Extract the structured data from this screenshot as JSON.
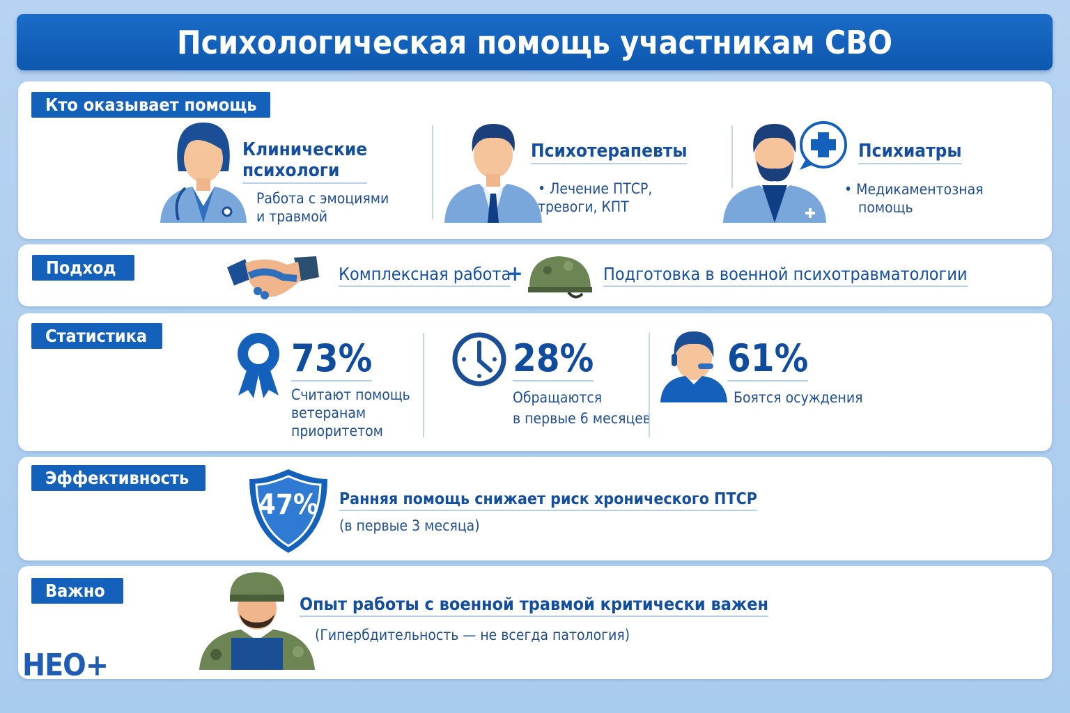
{
  "title": "Психологическая помощь участникам СВО",
  "sections": {
    "who": {
      "label": "Кто оказывает помощь",
      "items": [
        {
          "title_l1": "Клинические",
          "title_l2": "психологи",
          "text_l1": "Работа с эмоциями",
          "text_l2": "и травмой",
          "icon": "female-psychologist-icon"
        },
        {
          "title": "Психотерапевты",
          "text_l1": "• Лечение ПТСР,",
          "text_l2": "тревоги, КПТ",
          "icon": "male-psychotherapist-icon"
        },
        {
          "title": "Психиатры",
          "text_l1": "• Медикаментозная",
          "text_l2": "помощь",
          "icon": "psychiatrist-icon"
        }
      ]
    },
    "approach": {
      "label": "Подход",
      "item1": "Комплексная работа",
      "plus": "+",
      "item2": "Подготовка в военной психотравматологии"
    },
    "stats": {
      "label": "Статистика",
      "items": [
        {
          "value": "73%",
          "l1": "Считают помощь",
          "l2": "ветеранам",
          "l3": "приоритетом",
          "icon": "award-ribbon-icon"
        },
        {
          "value": "28%",
          "l1": "Обращаются",
          "l2": "в первые 6 месяцев",
          "icon": "clock-icon"
        },
        {
          "value": "61%",
          "l1": "Боятся осуждения",
          "icon": "person-headset-icon"
        }
      ]
    },
    "effect": {
      "label": "Эффективность",
      "value": "47%",
      "text": "Ранняя помощь снижает риск хронического ПТСР",
      "sub": "(в первые 3 месяца)"
    },
    "important": {
      "label": "Важно",
      "text": "Опыт работы с военной травмой критически важен",
      "sub": "(Гипербдительность — не всегда патология)"
    }
  },
  "logo": "НЕО+",
  "colors": {
    "primary": "#1461bb",
    "dark": "#104c9e",
    "background": "#b6d3f1"
  }
}
